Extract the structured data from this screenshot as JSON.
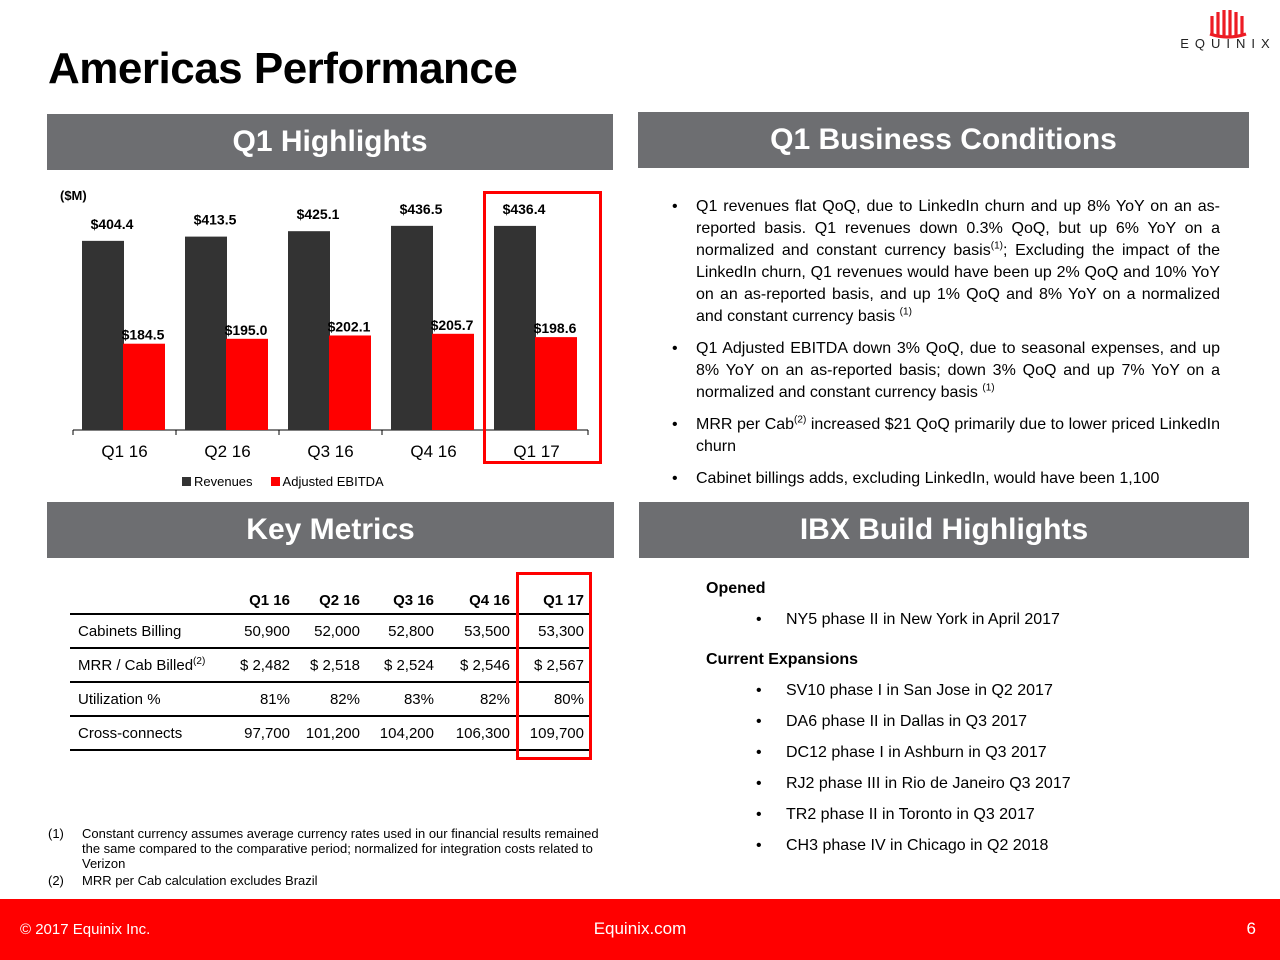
{
  "title": "Americas Performance",
  "logo": {
    "word": "EQUINIX",
    "color": "#ed1c24"
  },
  "sections": {
    "q1_highlights": "Q1 Highlights",
    "q1_business": "Q1 Business Conditions",
    "key_metrics": "Key Metrics",
    "ibx": "IBX Build Highlights"
  },
  "chart_unit": "($M)",
  "chart_data": {
    "type": "bar",
    "categories": [
      "Q1 16",
      "Q2 16",
      "Q3 16",
      "Q4 16",
      "Q1 17"
    ],
    "series": [
      {
        "name": "Revenues",
        "values": [
          404.4,
          413.5,
          425.1,
          436.5,
          436.4
        ],
        "labels": [
          "$404.4",
          "$413.5",
          "$425.1",
          "$436.5",
          "$436.4"
        ],
        "color": "#333333"
      },
      {
        "name": "Adjusted EBITDA",
        "values": [
          184.5,
          195.0,
          202.1,
          205.7,
          198.6
        ],
        "labels": [
          "$184.5",
          "$195.0",
          "$202.1",
          "$205.7",
          "$198.6"
        ],
        "color": "#ff0000"
      }
    ],
    "title": "",
    "xlabel": "",
    "ylabel": "",
    "ylim": [
      0,
      480
    ],
    "grid": false,
    "legend": "bottom"
  },
  "business_bullets": [
    {
      "pre": "Q1 revenues flat QoQ, due to LinkedIn churn and up 8% YoY on an as-reported basis.  Q1 revenues down 0.3% QoQ, but up 6% YoY on a normalized and constant currency basis",
      "sup": "(1)",
      "post": "; Excluding the impact of the LinkedIn churn, Q1 revenues would have been up 2% QoQ and 10% YoY on an as-reported basis, and up 1% QoQ and 8% YoY on a normalized and constant currency basis ",
      "sup2": "(1)"
    },
    {
      "pre": "Q1 Adjusted EBITDA down 3% QoQ, due to seasonal expenses, and up 8% YoY on an as-reported basis; down 3% QoQ and up 7% YoY on a normalized and constant currency basis ",
      "sup": "(1)",
      "post": "",
      "sup2": ""
    },
    {
      "pre": "MRR per Cab",
      "sup": "(2)",
      "post": " increased $21 QoQ primarily due to lower priced LinkedIn churn",
      "sup2": ""
    },
    {
      "pre": "Cabinet billings adds, excluding LinkedIn, would have been 1,100",
      "sup": "",
      "post": "",
      "sup2": ""
    }
  ],
  "metrics": {
    "headers": [
      "Q1 16",
      "Q2 16",
      "Q3 16",
      "Q4 16",
      "Q1 17"
    ],
    "rows": [
      {
        "label": "Cabinets Billing",
        "sup": "",
        "values": [
          "50,900",
          "52,000",
          "52,800",
          "53,500",
          "53,300"
        ]
      },
      {
        "label": "MRR / Cab Billed",
        "sup": "(2)",
        "values": [
          "$ 2,482",
          "$ 2,518",
          "$  2,524",
          "$  2,546",
          "$  2,567"
        ]
      },
      {
        "label": "Utilization %",
        "sup": "",
        "values": [
          "81%",
          "82%",
          "83%",
          "82%",
          "80%"
        ]
      },
      {
        "label": "Cross-connects",
        "sup": "",
        "values": [
          "97,700",
          "101,200",
          "104,200",
          "106,300",
          "109,700"
        ]
      }
    ]
  },
  "notes": [
    {
      "num": "(1)",
      "text": "Constant currency assumes average currency rates used in our financial results remained the same compared to the comparative period; normalized for integration costs related to Verizon"
    },
    {
      "num": "(2)",
      "text": "MRR per Cab calculation excludes Brazil"
    }
  ],
  "ibx": {
    "opened_label": "Opened",
    "opened": [
      "NY5 phase II in New York in April 2017"
    ],
    "expansions_label": "Current Expansions",
    "expansions": [
      "SV10 phase I in San Jose in Q2 2017",
      "DA6 phase II in Dallas in Q3 2017",
      "DC12 phase I in Ashburn in Q3 2017",
      "RJ2 phase III in Rio de Janeiro Q3 2017",
      "TR2 phase II in Toronto in Q3 2017",
      "CH3 phase IV in Chicago in Q2 2018"
    ]
  },
  "footer": {
    "copyright": "© 2017 Equinix Inc.",
    "site": "Equinix.com",
    "page": "6",
    "color": "#ff0000"
  }
}
